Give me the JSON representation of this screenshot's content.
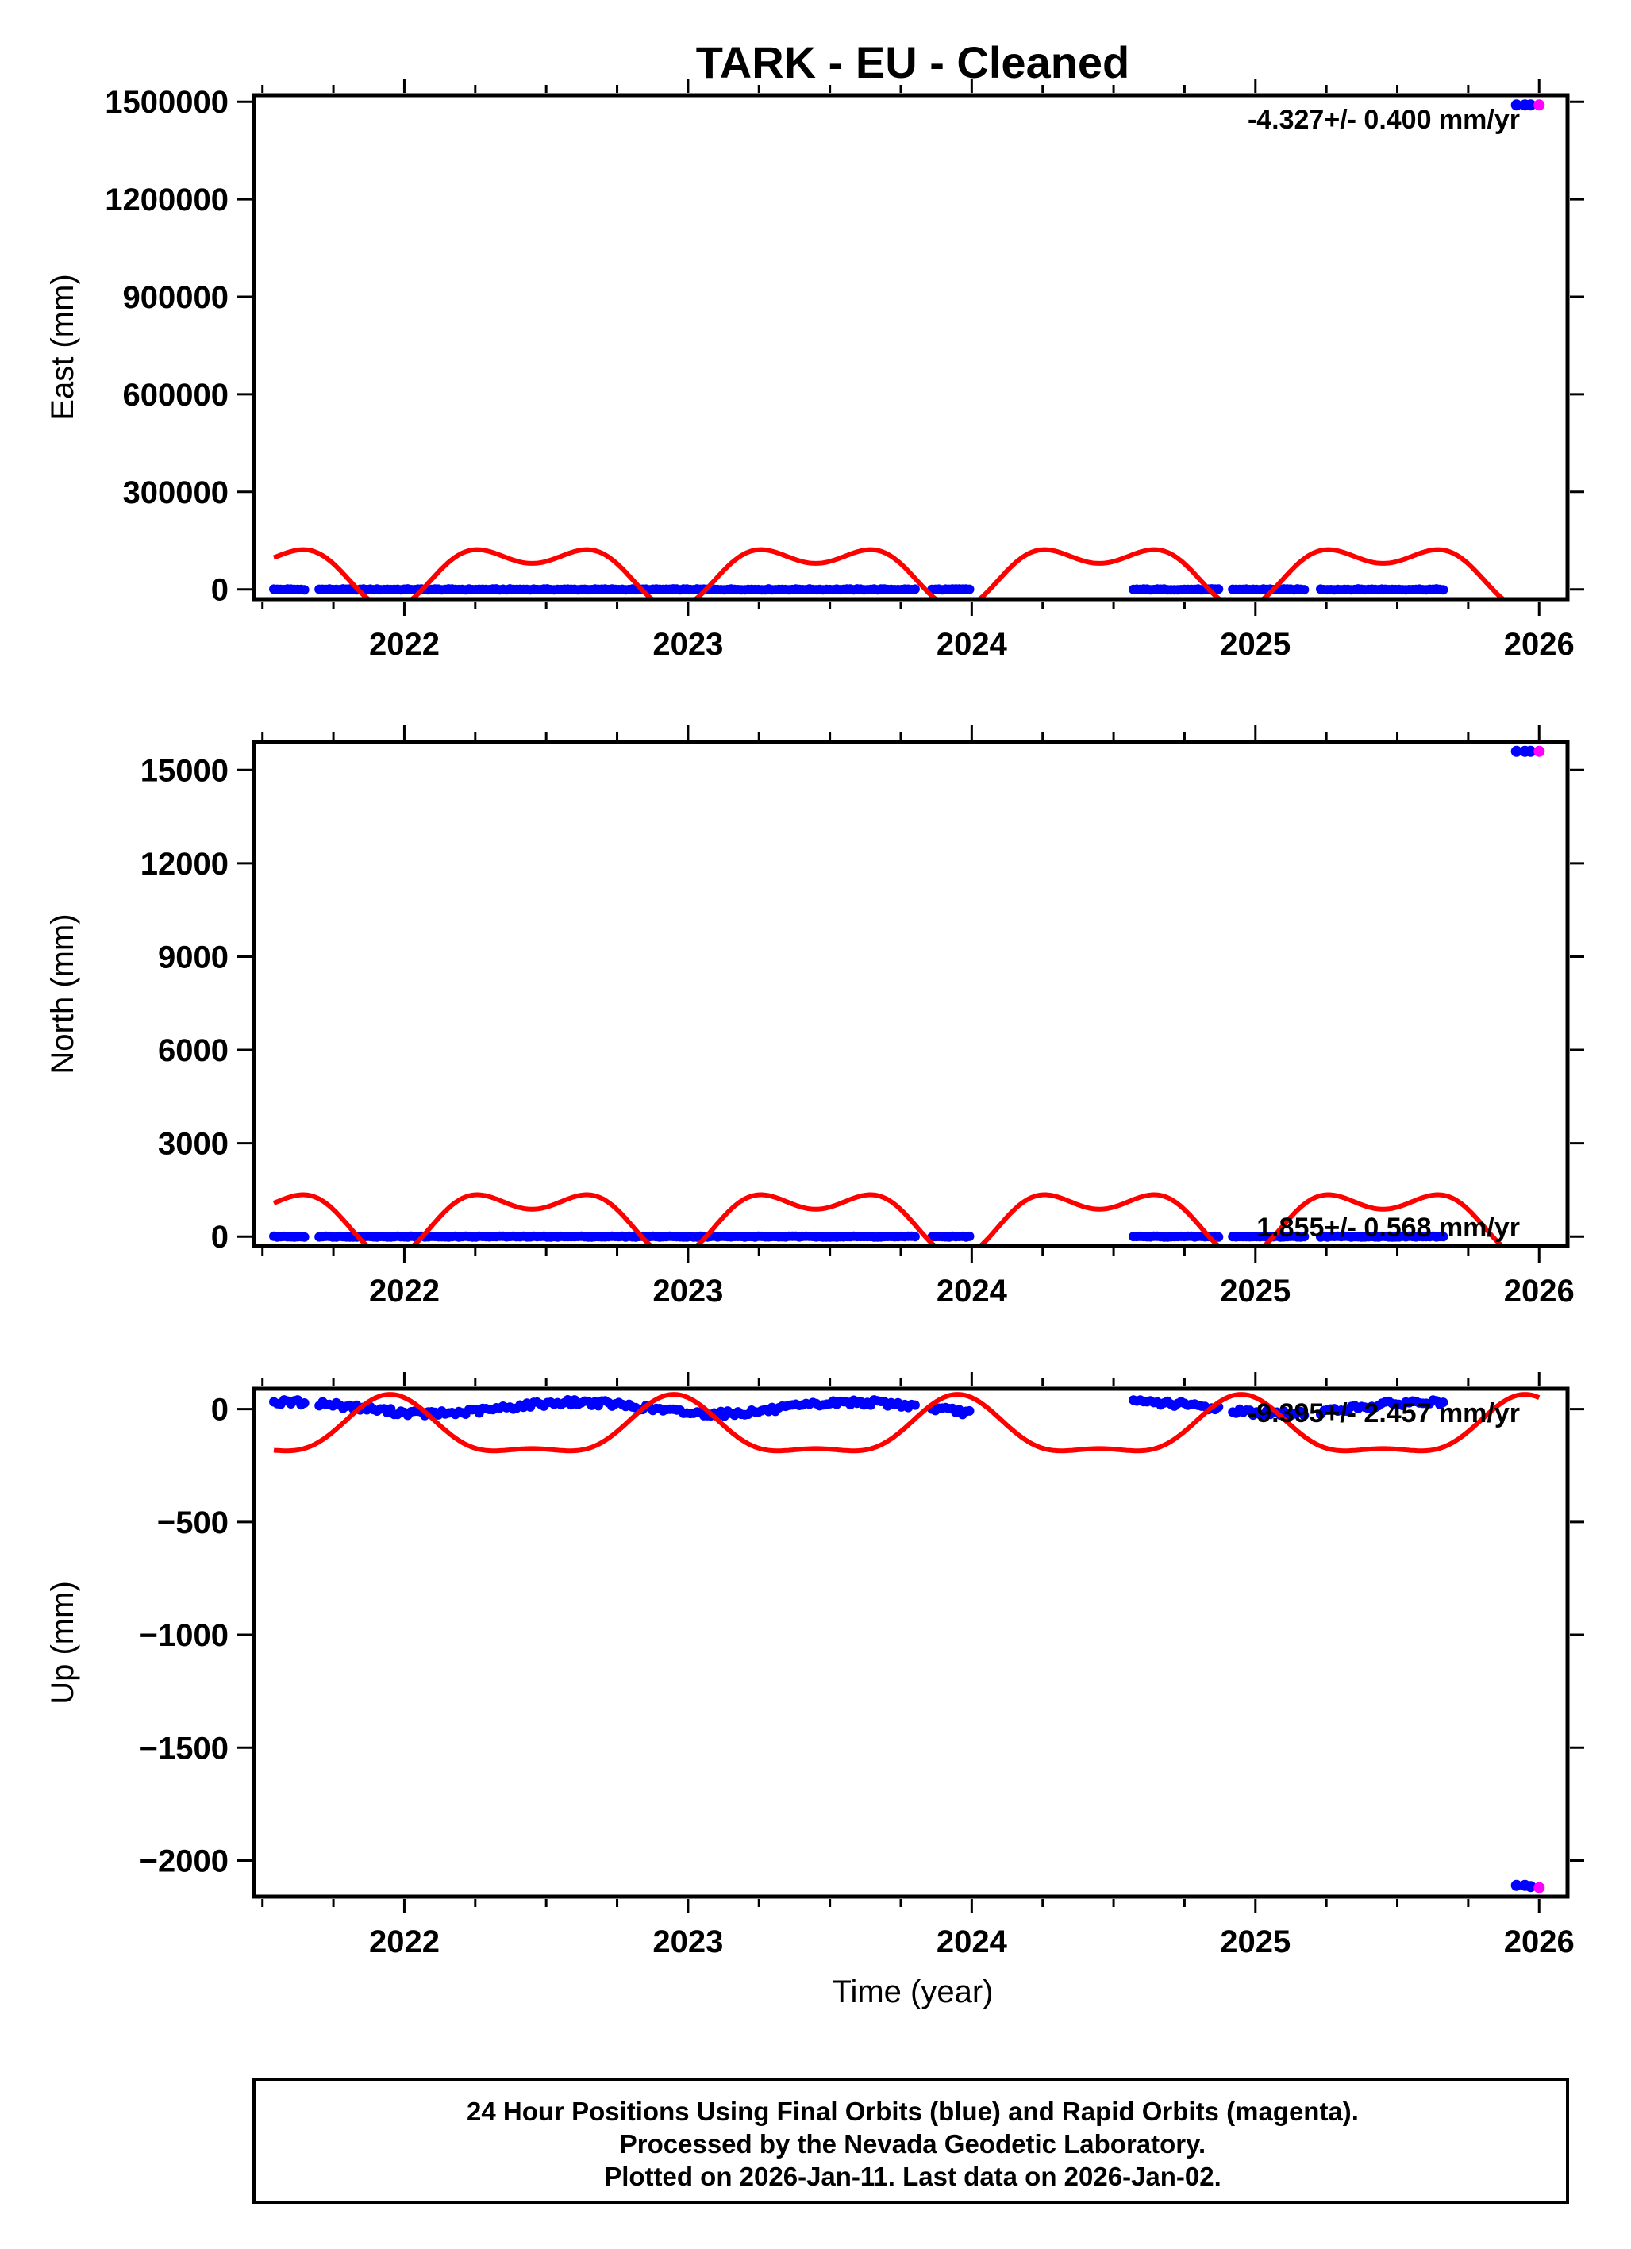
{
  "title": "TARK  - EU - Cleaned",
  "x_axis_label": "Time (year)",
  "colors": {
    "final": "#0000ff",
    "rapid": "#ff00ff",
    "model": "#ff0000",
    "frame": "#000000"
  },
  "footer": {
    "line1": "24 Hour Positions Using Final Orbits (blue) and Rapid Orbits (magenta).",
    "line2": "Processed by the Nevada Geodetic Laboratory.",
    "line3": "Plotted on 2026-Jan-11. Last data on 2026-Jan-02."
  },
  "chart_data": [
    {
      "type": "scatter",
      "panel": "east",
      "ylabel": "East (mm)",
      "rate_label": "-4.327+/- 0.400 mm/yr",
      "xlim": [
        2021.47,
        2026.1
      ],
      "ylim": [
        -30000,
        1520000
      ],
      "x_ticks": [
        "2022",
        "2023",
        "2024",
        "2025",
        "2026"
      ],
      "x_tick_values": [
        2022,
        2023,
        2024,
        2025,
        2026
      ],
      "y_ticks": [
        "0",
        "300000",
        "600000",
        "900000",
        "1200000",
        "1500000"
      ],
      "y_tick_values": [
        0,
        300000,
        600000,
        900000,
        1200000,
        1500000
      ],
      "final_segments": [
        [
          2021.54,
          2021.65
        ],
        [
          2021.7,
          2023.8
        ],
        [
          2023.86,
          2024.0
        ],
        [
          2024.57,
          2024.87
        ],
        [
          2024.92,
          2025.18
        ],
        [
          2025.23,
          2025.67
        ]
      ],
      "final_base": 0,
      "final_noise": 1500,
      "rapid_outliers": [
        [
          2025.92,
          1490000,
          "final"
        ],
        [
          2025.95,
          1490000,
          "final"
        ],
        [
          2025.97,
          1490000,
          "final"
        ],
        [
          2026.0,
          1490000,
          "rapid"
        ]
      ],
      "model": {
        "offset": 60000,
        "annual": -70000,
        "semi": -50000,
        "x_start": 2021.54,
        "x_end": 2026.0
      }
    },
    {
      "type": "scatter",
      "panel": "north",
      "ylabel": "North (mm)",
      "rate_label": "1.855+/- 0.568 mm/yr",
      "xlim": [
        2021.47,
        2026.1
      ],
      "ylim": [
        -300,
        15900
      ],
      "x_ticks": [
        "2022",
        "2023",
        "2024",
        "2025",
        "2026"
      ],
      "x_tick_values": [
        2022,
        2023,
        2024,
        2025,
        2026
      ],
      "y_ticks": [
        "0",
        "3000",
        "6000",
        "9000",
        "12000",
        "15000"
      ],
      "y_tick_values": [
        0,
        3000,
        6000,
        9000,
        12000,
        15000
      ],
      "final_segments": [
        [
          2021.54,
          2021.65
        ],
        [
          2021.7,
          2023.8
        ],
        [
          2023.86,
          2024.0
        ],
        [
          2024.57,
          2024.87
        ],
        [
          2024.92,
          2025.18
        ],
        [
          2025.23,
          2025.67
        ]
      ],
      "final_base": 0,
      "final_noise": 15,
      "rapid_outliers": [
        [
          2025.92,
          15600,
          "final"
        ],
        [
          2025.95,
          15600,
          "final"
        ],
        [
          2025.97,
          15600,
          "final"
        ],
        [
          2026.0,
          15600,
          "rapid"
        ]
      ],
      "model": {
        "offset": 660,
        "annual": -770,
        "semi": -550,
        "x_start": 2021.54,
        "x_end": 2026.0
      }
    },
    {
      "type": "scatter",
      "panel": "up",
      "ylabel": "Up (mm)",
      "rate_label": "-9.395+/- 2.457 mm/yr",
      "xlim": [
        2021.47,
        2026.1
      ],
      "ylim": [
        -2160,
        90
      ],
      "x_ticks": [
        "2022",
        "2023",
        "2024",
        "2025",
        "2026"
      ],
      "x_tick_values": [
        2022,
        2023,
        2024,
        2025,
        2026
      ],
      "y_ticks": [
        "0",
        "−500",
        "−1000",
        "−1500",
        "−2000"
      ],
      "y_tick_values": [
        0,
        -500,
        -1000,
        -1500,
        -2000
      ],
      "final_segments": [
        [
          2021.54,
          2021.65
        ],
        [
          2021.7,
          2023.8
        ],
        [
          2023.86,
          2024.0
        ],
        [
          2024.57,
          2024.87
        ],
        [
          2024.92,
          2025.18
        ],
        [
          2025.23,
          2025.67
        ]
      ],
      "final_base": 5,
      "final_noise": 12,
      "final_seasonal": 25,
      "rapid_outliers": [
        [
          2025.92,
          -2110,
          "final"
        ],
        [
          2025.95,
          -2110,
          "final"
        ],
        [
          2025.97,
          -2115,
          "final"
        ],
        [
          2026.0,
          -2120,
          "rapid"
        ]
      ],
      "model": {
        "offset": -100,
        "annual": 120,
        "semi": 45,
        "x_start": 2021.54,
        "x_end": 2026.0
      }
    }
  ]
}
